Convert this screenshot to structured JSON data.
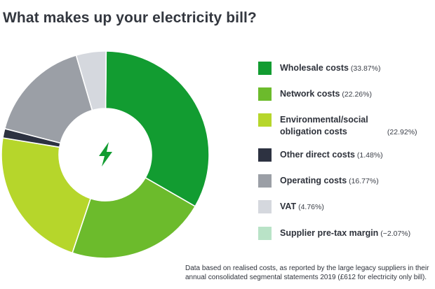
{
  "title": "What makes up your electricity bill?",
  "chart_data": {
    "type": "pie",
    "variant": "donut",
    "center_icon": "lightning-bolt-icon",
    "series": [
      {
        "name": "Wholesale costs",
        "label_pct": "(33.87%)",
        "value": 33.87,
        "color": "#129c31"
      },
      {
        "name": "Network costs",
        "label_pct": "(22.26%)",
        "value": 22.26,
        "color": "#6cbb2c"
      },
      {
        "name": "Environmental/social obligation costs",
        "label_pct": "(22.92%)",
        "value": 22.92,
        "color": "#b6d62b"
      },
      {
        "name": "Other direct costs",
        "label_pct": "(1.48%)",
        "value": 1.48,
        "color": "#2d3241"
      },
      {
        "name": "Operating costs",
        "label_pct": "(16.77%)",
        "value": 16.77,
        "color": "#9b9fa6"
      },
      {
        "name": "VAT",
        "label_pct": "(4.76%)",
        "value": 4.76,
        "color": "#d5d8de"
      },
      {
        "name": "Supplier pre-tax margin",
        "label_pct": "(−2.07%)",
        "value": -2.07,
        "color": "#b9e3c7"
      }
    ]
  },
  "footnote": "Data based on realised costs, as reported by the large legacy suppliers in their annual consolidated segmental statements 2019 (£612 for electricity only bill)."
}
